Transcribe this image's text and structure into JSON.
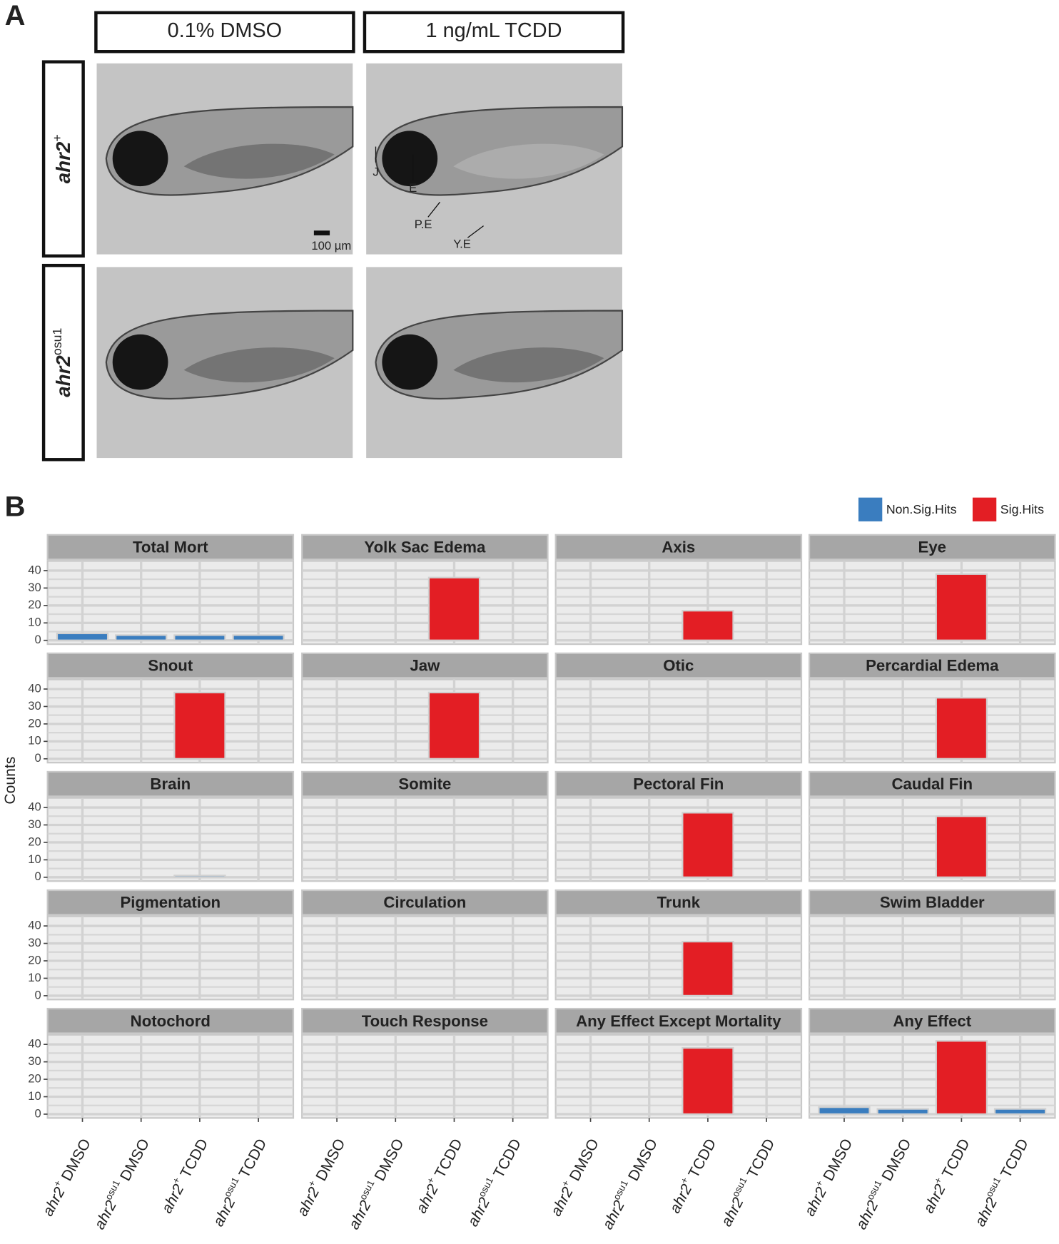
{
  "panel_a": {
    "label": "A",
    "columns": [
      "0.1% DMSO",
      "1 ng/mL TCDD"
    ],
    "rows": [
      {
        "gene": "ahr2",
        "allele": "+"
      },
      {
        "gene": "ahr2",
        "allele": "osu1"
      }
    ],
    "annotations": [
      "J",
      "E",
      "P.E",
      "Y.E"
    ],
    "scale_bar": "100 µm"
  },
  "chart_data": {
    "type": "bar",
    "label": "B",
    "ylabel": "Counts",
    "series": [
      {
        "name": "Non.Sig.Hits",
        "color": "#3a7dbf"
      },
      {
        "name": "Sig.Hits",
        "color": "#e31e24"
      }
    ],
    "categories": [
      {
        "gene": "ahr2",
        "allele": "+",
        "treatment": "DMSO"
      },
      {
        "gene": "ahr2",
        "allele": "osu1",
        "treatment": "DMSO"
      },
      {
        "gene": "ahr2",
        "allele": "+",
        "treatment": "TCDD"
      },
      {
        "gene": "ahr2",
        "allele": "osu1",
        "treatment": "TCDD"
      }
    ],
    "ylim": [
      -2.2,
      45.5
    ],
    "yticks": [
      0,
      10,
      20,
      30,
      40
    ],
    "grid": true,
    "facets": [
      {
        "title": "Total Mort",
        "values": [
          4,
          3,
          3,
          3
        ],
        "sig": [
          false,
          false,
          false,
          false
        ]
      },
      {
        "title": "Yolk Sac Edema",
        "values": [
          0,
          0,
          36,
          0
        ],
        "sig": [
          false,
          false,
          true,
          false
        ]
      },
      {
        "title": "Axis",
        "values": [
          0,
          0,
          17,
          0
        ],
        "sig": [
          false,
          false,
          true,
          false
        ]
      },
      {
        "title": "Eye",
        "values": [
          0,
          0,
          38,
          0
        ],
        "sig": [
          false,
          false,
          true,
          false
        ]
      },
      {
        "title": "Snout",
        "values": [
          0,
          0,
          38,
          0
        ],
        "sig": [
          false,
          false,
          true,
          false
        ]
      },
      {
        "title": "Jaw",
        "values": [
          0,
          0,
          38,
          0
        ],
        "sig": [
          false,
          false,
          true,
          false
        ]
      },
      {
        "title": "Otic",
        "values": [
          0,
          0,
          0,
          0
        ],
        "sig": [
          false,
          false,
          false,
          false
        ]
      },
      {
        "title": "Percardial Edema",
        "values": [
          0,
          0,
          35,
          0
        ],
        "sig": [
          false,
          false,
          true,
          false
        ]
      },
      {
        "title": "Brain",
        "values": [
          0,
          0,
          1,
          0
        ],
        "sig": [
          false,
          false,
          false,
          false
        ]
      },
      {
        "title": "Somite",
        "values": [
          0,
          0,
          0,
          0
        ],
        "sig": [
          false,
          false,
          false,
          false
        ]
      },
      {
        "title": "Pectoral Fin",
        "values": [
          0,
          0,
          37,
          0
        ],
        "sig": [
          false,
          false,
          true,
          false
        ]
      },
      {
        "title": "Caudal Fin",
        "values": [
          0,
          0,
          35,
          0
        ],
        "sig": [
          false,
          false,
          true,
          false
        ]
      },
      {
        "title": "Pigmentation",
        "values": [
          0,
          0,
          0,
          0
        ],
        "sig": [
          false,
          false,
          false,
          false
        ]
      },
      {
        "title": "Circulation",
        "values": [
          0,
          0,
          0,
          0
        ],
        "sig": [
          false,
          false,
          false,
          false
        ]
      },
      {
        "title": "Trunk",
        "values": [
          0,
          0,
          31,
          0
        ],
        "sig": [
          false,
          false,
          true,
          false
        ]
      },
      {
        "title": "Swim Bladder",
        "values": [
          0,
          0,
          0,
          0
        ],
        "sig": [
          false,
          false,
          false,
          false
        ]
      },
      {
        "title": "Notochord",
        "values": [
          0,
          0,
          0,
          0
        ],
        "sig": [
          false,
          false,
          false,
          false
        ]
      },
      {
        "title": "Touch Response",
        "values": [
          0,
          0,
          0,
          0
        ],
        "sig": [
          false,
          false,
          false,
          false
        ]
      },
      {
        "title": "Any Effect Except Mortality",
        "values": [
          0,
          0,
          38,
          0
        ],
        "sig": [
          false,
          false,
          true,
          false
        ]
      },
      {
        "title": "Any Effect",
        "values": [
          4,
          3,
          42,
          3
        ],
        "sig": [
          false,
          false,
          true,
          false
        ]
      }
    ]
  }
}
